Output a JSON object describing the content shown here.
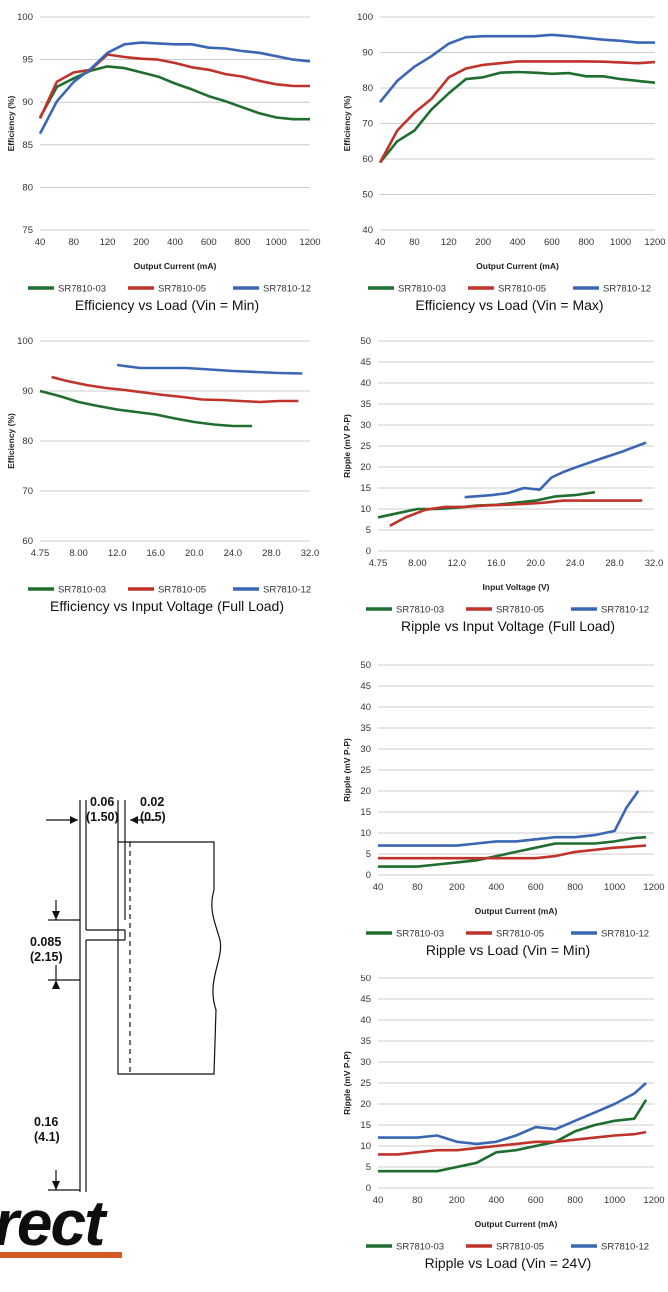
{
  "colors": {
    "green": "#1e6e2f",
    "red": "#c0332b",
    "blue": "#3a66b4"
  },
  "legend_labels": [
    "SR7810-03",
    "SR7810-05",
    "SR7810-12"
  ],
  "chart_data": [
    {
      "id": "eff-load-min",
      "type": "line",
      "title": "Efficiency vs Load (Vin = Min)",
      "xlabel": "Output Current (mA)",
      "ylabel": "Efficiency (%)",
      "xticks": [
        "40",
        "80",
        "120",
        "200",
        "400",
        "600",
        "800",
        "1000",
        "1200"
      ],
      "ylim": [
        75,
        100
      ],
      "yticks": [
        75,
        80,
        85,
        90,
        95,
        100
      ],
      "series": [
        {
          "name": "SR7810-03",
          "color": "#1e6e2f",
          "x": [
            0,
            0.5,
            1,
            1.5,
            2,
            2.5,
            3,
            3.5,
            4,
            4.5,
            5,
            5.5,
            6,
            6.5,
            7,
            7.5,
            8
          ],
          "values": [
            88.2,
            91.8,
            92.8,
            93.7,
            94.2,
            94,
            93.5,
            93,
            92.2,
            91.5,
            90.7,
            90.1,
            89.4,
            88.7,
            88.2,
            88,
            88
          ]
        },
        {
          "name": "SR7810-05",
          "color": "#c0332b",
          "x": [
            0,
            0.5,
            1,
            1.5,
            2,
            2.5,
            3,
            3.5,
            4,
            4.5,
            5,
            5.5,
            6,
            6.5,
            7,
            7.5,
            8
          ],
          "values": [
            88.1,
            92.4,
            93.5,
            93.8,
            95.6,
            95.3,
            95.1,
            95,
            94.6,
            94.1,
            93.8,
            93.3,
            93,
            92.5,
            92.1,
            91.9,
            91.9
          ]
        },
        {
          "name": "SR7810-12",
          "color": "#3a66b4",
          "x": [
            0,
            0.5,
            1,
            1.5,
            2,
            2.5,
            3,
            3.5,
            4,
            4.5,
            5,
            5.5,
            6,
            6.5,
            7,
            7.5,
            8
          ],
          "values": [
            86.3,
            90.1,
            92.4,
            93.9,
            95.8,
            96.8,
            97,
            96.9,
            96.8,
            96.8,
            96.4,
            96.3,
            96,
            95.8,
            95.4,
            95,
            94.8
          ]
        }
      ]
    },
    {
      "id": "eff-load-max",
      "type": "line",
      "title": "Efficiency vs Load (Vin = Max)",
      "xlabel": "Output Current (mA)",
      "ylabel": "Efficiency (%)",
      "xticks": [
        "40",
        "80",
        "120",
        "200",
        "400",
        "600",
        "800",
        "1000",
        "1200"
      ],
      "ylim": [
        40,
        100
      ],
      "yticks": [
        40,
        50,
        60,
        70,
        80,
        90,
        100
      ],
      "series": [
        {
          "name": "SR7810-03",
          "color": "#1e6e2f",
          "x": [
            0,
            0.5,
            1,
            1.5,
            2,
            2.5,
            3,
            3.5,
            4,
            4.5,
            5,
            5.5,
            6,
            6.5,
            7,
            7.5,
            8
          ],
          "values": [
            59,
            65,
            68,
            74,
            78.5,
            82.5,
            83,
            84.3,
            84.5,
            84.3,
            84,
            84.2,
            83.3,
            83.3,
            82.5,
            82,
            81.5
          ]
        },
        {
          "name": "SR7810-05",
          "color": "#c0332b",
          "x": [
            0,
            0.5,
            1,
            1.5,
            2,
            2.5,
            3,
            3.5,
            4,
            4.5,
            5,
            5.5,
            6,
            6.5,
            7,
            7.5,
            8
          ],
          "values": [
            59,
            68,
            73,
            77,
            83,
            85.5,
            86.5,
            87,
            87.5,
            87.5,
            87.5,
            87.5,
            87.5,
            87.4,
            87.2,
            87,
            87.3
          ]
        },
        {
          "name": "SR7810-12",
          "color": "#3a66b4",
          "x": [
            0,
            0.5,
            1,
            1.5,
            2,
            2.5,
            3,
            3.5,
            4,
            4.5,
            5,
            5.5,
            6,
            6.5,
            7,
            7.5,
            8
          ],
          "values": [
            76,
            82,
            86,
            89,
            92.5,
            94.3,
            94.6,
            94.6,
            94.6,
            94.6,
            95,
            94.6,
            94.1,
            93.6,
            93.3,
            92.8,
            92.8
          ]
        }
      ]
    },
    {
      "id": "eff-vin",
      "type": "line",
      "title": "Efficiency vs Input Voltage (Full Load)",
      "xlabel": "",
      "ylabel": "Efficiency (%)",
      "xticks": [
        "4.75",
        "8.00",
        "12.0",
        "16.0",
        "20.0",
        "24.0",
        "28.0",
        "32.0"
      ],
      "ylim": [
        60,
        100
      ],
      "yticks": [
        60,
        70,
        80,
        90,
        100
      ],
      "series": [
        {
          "name": "SR7810-03",
          "color": "#1e6e2f",
          "x": [
            0,
            0.5,
            1,
            1.5,
            2,
            2.5,
            3,
            3.5,
            4,
            4.5,
            5,
            5.5
          ],
          "values": [
            90,
            89,
            87.8,
            87,
            86.3,
            85.8,
            85.3,
            84.5,
            83.8,
            83.3,
            83,
            83
          ]
        },
        {
          "name": "SR7810-05",
          "color": "#c0332b",
          "x": [
            0.3,
            0.7,
            1.2,
            1.7,
            2.2,
            2.7,
            3.2,
            3.7,
            4.2,
            4.7,
            5.2,
            5.7,
            6.2,
            6.7
          ],
          "values": [
            92.8,
            92,
            91.2,
            90.6,
            90.2,
            89.7,
            89.2,
            88.8,
            88.3,
            88.2,
            88,
            87.8,
            88,
            88
          ]
        },
        {
          "name": "SR7810-12",
          "color": "#3a66b4",
          "x": [
            2.0,
            2.6,
            3.2,
            3.8,
            4.4,
            5.0,
            5.6,
            6.2,
            6.8
          ],
          "values": [
            95.2,
            94.6,
            94.6,
            94.6,
            94.3,
            94,
            93.8,
            93.6,
            93.5
          ]
        }
      ]
    },
    {
      "id": "ripple-vin",
      "type": "line",
      "title": "Ripple vs Input Voltage (Full Load)",
      "xlabel": "Input Voltage (V)",
      "ylabel": "Ripple (mV P-P)",
      "xticks": [
        "4.75",
        "8.00",
        "12.0",
        "16.0",
        "20.0",
        "24.0",
        "28.0",
        "32.0"
      ],
      "ylim": [
        0,
        50
      ],
      "yticks": [
        0,
        5,
        10,
        15,
        20,
        25,
        30,
        35,
        40,
        45,
        50
      ],
      "series": [
        {
          "name": "SR7810-03",
          "color": "#1e6e2f",
          "x": [
            0,
            0.5,
            1,
            1.5,
            2,
            2.5,
            3,
            3.5,
            4,
            4.5,
            5,
            5.5
          ],
          "values": [
            8,
            9,
            10,
            10,
            10.3,
            10.8,
            11,
            11.5,
            12,
            13,
            13.3,
            14
          ]
        },
        {
          "name": "SR7810-05",
          "color": "#c0332b",
          "x": [
            0.3,
            0.7,
            1.2,
            1.7,
            2.2,
            2.7,
            3.2,
            3.7,
            4.2,
            4.7,
            5.2,
            5.7,
            6.2,
            6.7
          ],
          "values": [
            6,
            8,
            9.8,
            10.5,
            10.5,
            10.8,
            11,
            11.2,
            11.5,
            12,
            12,
            12,
            12,
            12
          ]
        },
        {
          "name": "SR7810-12",
          "color": "#3a66b4",
          "x": [
            2.2,
            2.9,
            3.3,
            3.7,
            4.1,
            4.4,
            4.7,
            5.1,
            5.6,
            6.2,
            6.8
          ],
          "values": [
            12.8,
            13.3,
            13.8,
            15,
            14.6,
            17.5,
            18.8,
            20.2,
            21.8,
            23.7,
            25.8
          ]
        }
      ]
    },
    {
      "id": "ripple-load-min",
      "type": "line",
      "title": "Ripple vs Load (Vin = Min)",
      "xlabel": "Output Current (mA)",
      "ylabel": "Ripple (mV P-P)",
      "xticks": [
        "40",
        "80",
        "200",
        "400",
        "600",
        "800",
        "1000",
        "1200"
      ],
      "ylim": [
        0,
        50
      ],
      "yticks": [
        0,
        5,
        10,
        15,
        20,
        25,
        30,
        35,
        40,
        45,
        50
      ],
      "series": [
        {
          "name": "SR7810-03",
          "color": "#1e6e2f",
          "x": [
            0,
            0.5,
            1,
            1.5,
            2,
            2.5,
            3,
            3.5,
            4,
            4.5,
            5,
            5.5,
            6,
            6.5,
            6.8
          ],
          "values": [
            2,
            2,
            2,
            2.5,
            3,
            3.5,
            4.5,
            5.5,
            6.5,
            7.5,
            7.5,
            7.5,
            8,
            8.8,
            9
          ]
        },
        {
          "name": "SR7810-05",
          "color": "#c0332b",
          "x": [
            0,
            0.5,
            1,
            1.5,
            2,
            2.5,
            3,
            3.5,
            4,
            4.5,
            5,
            5.5,
            6,
            6.5,
            6.8
          ],
          "values": [
            4,
            4,
            4,
            4,
            4,
            4,
            4,
            4,
            4,
            4.5,
            5.5,
            6,
            6.5,
            6.8,
            7
          ]
        },
        {
          "name": "SR7810-12",
          "color": "#3a66b4",
          "x": [
            0,
            0.5,
            1,
            1.5,
            2,
            2.5,
            3,
            3.5,
            4,
            4.5,
            5,
            5.5,
            6,
            6.3,
            6.6
          ],
          "values": [
            7,
            7,
            7,
            7,
            7,
            7.5,
            8,
            8,
            8.5,
            9,
            9,
            9.5,
            10.5,
            16,
            20
          ]
        }
      ]
    },
    {
      "id": "ripple-load-24v",
      "type": "line",
      "title": "Ripple vs Load (Vin = 24V)",
      "xlabel": "Output Current (mA)",
      "ylabel": "Ripple (mV P-P)",
      "xticks": [
        "40",
        "80",
        "200",
        "400",
        "600",
        "800",
        "1000",
        "1200"
      ],
      "ylim": [
        0,
        50
      ],
      "yticks": [
        0,
        5,
        10,
        15,
        20,
        25,
        30,
        35,
        40,
        45,
        50
      ],
      "series": [
        {
          "name": "SR7810-03",
          "color": "#1e6e2f",
          "x": [
            0,
            0.5,
            1,
            1.5,
            2,
            2.5,
            3,
            3.5,
            4,
            4.5,
            5,
            5.5,
            6,
            6.5,
            6.8
          ],
          "values": [
            4,
            4,
            4,
            4,
            5,
            6,
            8.5,
            9,
            10,
            11,
            13.5,
            15,
            16,
            16.5,
            21
          ]
        },
        {
          "name": "SR7810-05",
          "color": "#c0332b",
          "x": [
            0,
            0.5,
            1,
            1.5,
            2,
            2.5,
            3,
            3.5,
            4,
            4.5,
            5,
            5.5,
            6,
            6.5,
            6.8
          ],
          "values": [
            8,
            8,
            8.5,
            9,
            9,
            9.5,
            10,
            10.5,
            11,
            11,
            11.5,
            12,
            12.5,
            12.8,
            13.3
          ]
        },
        {
          "name": "SR7810-12",
          "color": "#3a66b4",
          "x": [
            0,
            0.5,
            1,
            1.5,
            2,
            2.5,
            3,
            3.5,
            4,
            4.5,
            5,
            5.5,
            6,
            6.5,
            6.8
          ],
          "values": [
            12,
            12,
            12,
            12.5,
            11,
            10.5,
            11,
            12.5,
            14.5,
            14,
            16,
            18,
            20,
            22.5,
            25
          ]
        }
      ]
    }
  ],
  "dimension_drawing": {
    "dim_top_left": "0.06",
    "dim_top_left_mm": "(1.50)",
    "dim_top_right": "0.02",
    "dim_top_right_mm": "(0.5)",
    "dim_mid": "0.085",
    "dim_mid_mm": "(2.15)",
    "dim_bottom": "0.16",
    "dim_bottom_mm": "(4.1)"
  },
  "logo": {
    "text": "rect"
  }
}
